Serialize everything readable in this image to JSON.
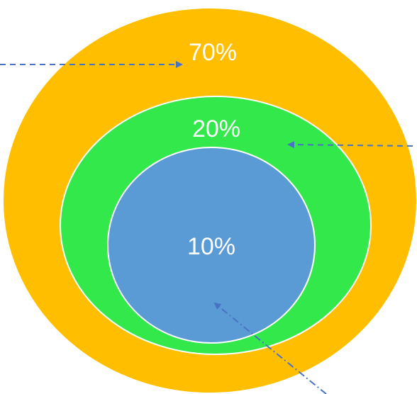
{
  "diagram": {
    "rings": [
      {
        "id": "outer",
        "label": "70%",
        "color": "#FFBF00"
      },
      {
        "id": "middle",
        "label": "20%",
        "color": "#33E84A"
      },
      {
        "id": "inner",
        "label": "10%",
        "color": "#5B9BD5"
      }
    ],
    "outline_color": "#FFFFFF",
    "arrow_color": "#4A72C4"
  }
}
